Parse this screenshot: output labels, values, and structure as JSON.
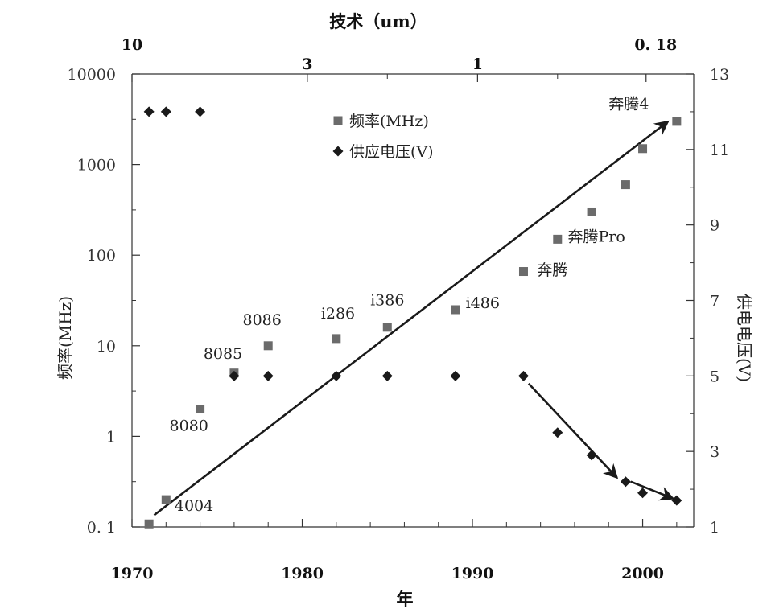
{
  "chart_data": {
    "type": "scatter",
    "title": "",
    "xlabel": "年",
    "top_xlabel": "技术（um）",
    "ylabel_left": "频率(MHz)",
    "ylabel_right": "供电电压(V)",
    "xlim": [
      1970,
      2003
    ],
    "ylim_left_log": [
      0.1,
      10000
    ],
    "ylim_right": [
      1,
      13
    ],
    "x_ticks": [
      1970,
      1980,
      1990,
      2000
    ],
    "x_tick_labels": [
      "1970",
      "1980",
      "1990",
      "2000"
    ],
    "x_minor_ticks": [
      1972,
      1974,
      1976,
      1978,
      1982,
      1984,
      1986,
      1988,
      1992,
      1994,
      1996,
      1998,
      2002
    ],
    "top_ticks": [
      {
        "label": "10",
        "year": 1970
      },
      {
        "label": "3",
        "year": 1980.3
      },
      {
        "label": "1",
        "year": 1990.3
      },
      {
        "label": "0. 18",
        "year": 2000.2
      }
    ],
    "top_minor_ticks": [
      1985,
      1995
    ],
    "left_ticks": [
      {
        "label": "0. 1",
        "value": 0.1
      },
      {
        "label": "1",
        "value": 1
      },
      {
        "label": "10",
        "value": 10
      },
      {
        "label": "100",
        "value": 100
      },
      {
        "label": "1000",
        "value": 1000
      },
      {
        "label": "10000",
        "value": 10000
      }
    ],
    "right_ticks": [
      {
        "label": "1",
        "value": 1
      },
      {
        "label": "3",
        "value": 3
      },
      {
        "label": "5",
        "value": 5
      },
      {
        "label": "7",
        "value": 7
      },
      {
        "label": "9",
        "value": 9
      },
      {
        "label": "11",
        "value": 11
      },
      {
        "label": "13",
        "value": 13
      }
    ],
    "series": [
      {
        "name": "频率(MHz)",
        "marker": "square",
        "color": "#6b6b6b",
        "points": [
          {
            "x": 1971,
            "y": 0.108
          },
          {
            "x": 1972,
            "y": 0.2
          },
          {
            "x": 1974,
            "y": 2
          },
          {
            "x": 1976,
            "y": 5
          },
          {
            "x": 1978,
            "y": 10
          },
          {
            "x": 1982,
            "y": 12
          },
          {
            "x": 1985,
            "y": 16
          },
          {
            "x": 1989,
            "y": 25
          },
          {
            "x": 1993,
            "y": 66
          },
          {
            "x": 1995,
            "y": 150
          },
          {
            "x": 1997,
            "y": 300
          },
          {
            "x": 1999,
            "y": 600
          },
          {
            "x": 2000,
            "y": 1500
          },
          {
            "x": 2002,
            "y": 3000
          }
        ]
      },
      {
        "name": "供应电压(V)",
        "marker": "diamond",
        "color": "#1a1a1a",
        "points": [
          {
            "x": 1971,
            "y": 12
          },
          {
            "x": 1972,
            "y": 12
          },
          {
            "x": 1974,
            "y": 12
          },
          {
            "x": 1976,
            "y": 5
          },
          {
            "x": 1978,
            "y": 5
          },
          {
            "x": 1982,
            "y": 5
          },
          {
            "x": 1985,
            "y": 5
          },
          {
            "x": 1989,
            "y": 5
          },
          {
            "x": 1993,
            "y": 5
          },
          {
            "x": 1995,
            "y": 3.5
          },
          {
            "x": 1997,
            "y": 2.9
          },
          {
            "x": 1999,
            "y": 2.2
          },
          {
            "x": 2000,
            "y": 1.9
          },
          {
            "x": 2002,
            "y": 1.7
          }
        ]
      }
    ],
    "trend_lines": [
      {
        "name": "frequency-trend",
        "axis": "left",
        "from": {
          "x": 1971.3,
          "y": 0.135
        },
        "to": {
          "x": 2001.5,
          "y": 3000
        },
        "arrow": true
      },
      {
        "name": "voltage-trend-1",
        "axis": "right",
        "from": {
          "x": 1993.3,
          "y": 4.8
        },
        "to": {
          "x": 1998.5,
          "y": 2.3
        },
        "arrow": true
      },
      {
        "name": "voltage-trend-2",
        "axis": "right",
        "from": {
          "x": 1999.3,
          "y": 2.2
        },
        "to": {
          "x": 2001.8,
          "y": 1.75
        },
        "arrow": true
      }
    ],
    "annotations": [
      {
        "text": "4004",
        "x": 1972.5,
        "y": 0.15
      },
      {
        "text": "8080",
        "x": 1972.2,
        "y": 1.15
      },
      {
        "text": "8085",
        "x": 1974.2,
        "y": 7.2
      },
      {
        "text": "8086",
        "x": 1976.5,
        "y": 17
      },
      {
        "text": "i286",
        "x": 1981.1,
        "y": 20
      },
      {
        "text": "i386",
        "x": 1984.0,
        "y": 28
      },
      {
        "text": "i486",
        "x": 1989.6,
        "y": 26
      },
      {
        "text": "奔腾",
        "x": 1993.8,
        "y": 60
      },
      {
        "text": "奔腾Pro",
        "x": 1995.6,
        "y": 140
      },
      {
        "text": "奔腾4",
        "x": 1998.0,
        "y": 4100
      }
    ],
    "legend": {
      "position": "top-center",
      "entries": [
        {
          "label": "频率(MHz)",
          "marker": "square"
        },
        {
          "label": "供应电压(V)",
          "marker": "diamond"
        }
      ]
    },
    "grid": false
  }
}
